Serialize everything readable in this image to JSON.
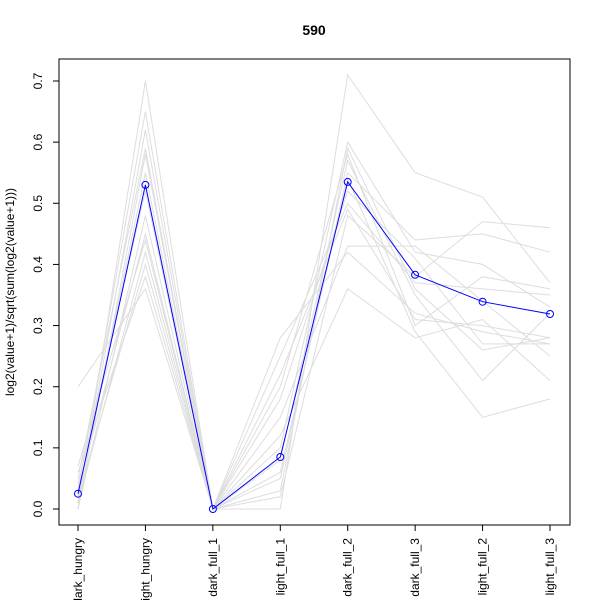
{
  "chart_data": {
    "type": "line",
    "title": "590",
    "xlabel": "",
    "ylabel": "log2(value+1)/sqrt(sum(log2(value+1)))",
    "categories": [
      "dark_hungry",
      "light_hungry",
      "dark_full_1",
      "light_full_1",
      "dark_full_2",
      "dark_full_3",
      "light_full_2",
      "light_full_3"
    ],
    "ylim": [
      0,
      0.7
    ],
    "yticks": [
      0.0,
      0.1,
      0.2,
      0.3,
      0.4,
      0.5,
      0.6,
      0.7
    ],
    "ytick_labels": [
      "0.0",
      "0.1",
      "0.2",
      "0.3",
      "0.4",
      "0.5",
      "0.6",
      "0.7"
    ],
    "grid": false,
    "highlight_series": {
      "color": "#0000ff",
      "marker": "open-circle",
      "values": [
        0.025,
        0.53,
        0.0,
        0.085,
        0.535,
        0.383,
        0.339,
        0.319
      ]
    },
    "background_series": {
      "color": "#dddddd",
      "values": [
        [
          0.2,
          0.36,
          0.0,
          0.0,
          0.71,
          0.55,
          0.51,
          0.37
        ],
        [
          0.0,
          0.7,
          0.0,
          0.02,
          0.48,
          0.38,
          0.47,
          0.46
        ],
        [
          0.03,
          0.65,
          0.0,
          0.05,
          0.55,
          0.44,
          0.45,
          0.42
        ],
        [
          0.01,
          0.62,
          0.0,
          0.1,
          0.6,
          0.42,
          0.4,
          0.33
        ],
        [
          0.05,
          0.59,
          0.0,
          0.15,
          0.43,
          0.43,
          0.34,
          0.25
        ],
        [
          0.02,
          0.55,
          0.0,
          0.2,
          0.58,
          0.3,
          0.38,
          0.36
        ],
        [
          0.04,
          0.52,
          0.0,
          0.28,
          0.42,
          0.32,
          0.29,
          0.27
        ],
        [
          0.0,
          0.48,
          0.0,
          0.25,
          0.5,
          0.37,
          0.36,
          0.35
        ],
        [
          0.03,
          0.45,
          0.0,
          0.18,
          0.52,
          0.41,
          0.27,
          0.27
        ],
        [
          0.01,
          0.42,
          0.0,
          0.08,
          0.57,
          0.35,
          0.21,
          0.32
        ],
        [
          0.06,
          0.38,
          0.0,
          0.12,
          0.36,
          0.28,
          0.31,
          0.21
        ],
        [
          0.02,
          0.4,
          0.0,
          0.06,
          0.54,
          0.29,
          0.15,
          0.18
        ],
        [
          0.0,
          0.58,
          0.0,
          0.03,
          0.59,
          0.36,
          0.26,
          0.28
        ],
        [
          0.07,
          0.44,
          0.0,
          0.22,
          0.49,
          0.31,
          0.3,
          0.28
        ]
      ]
    }
  }
}
